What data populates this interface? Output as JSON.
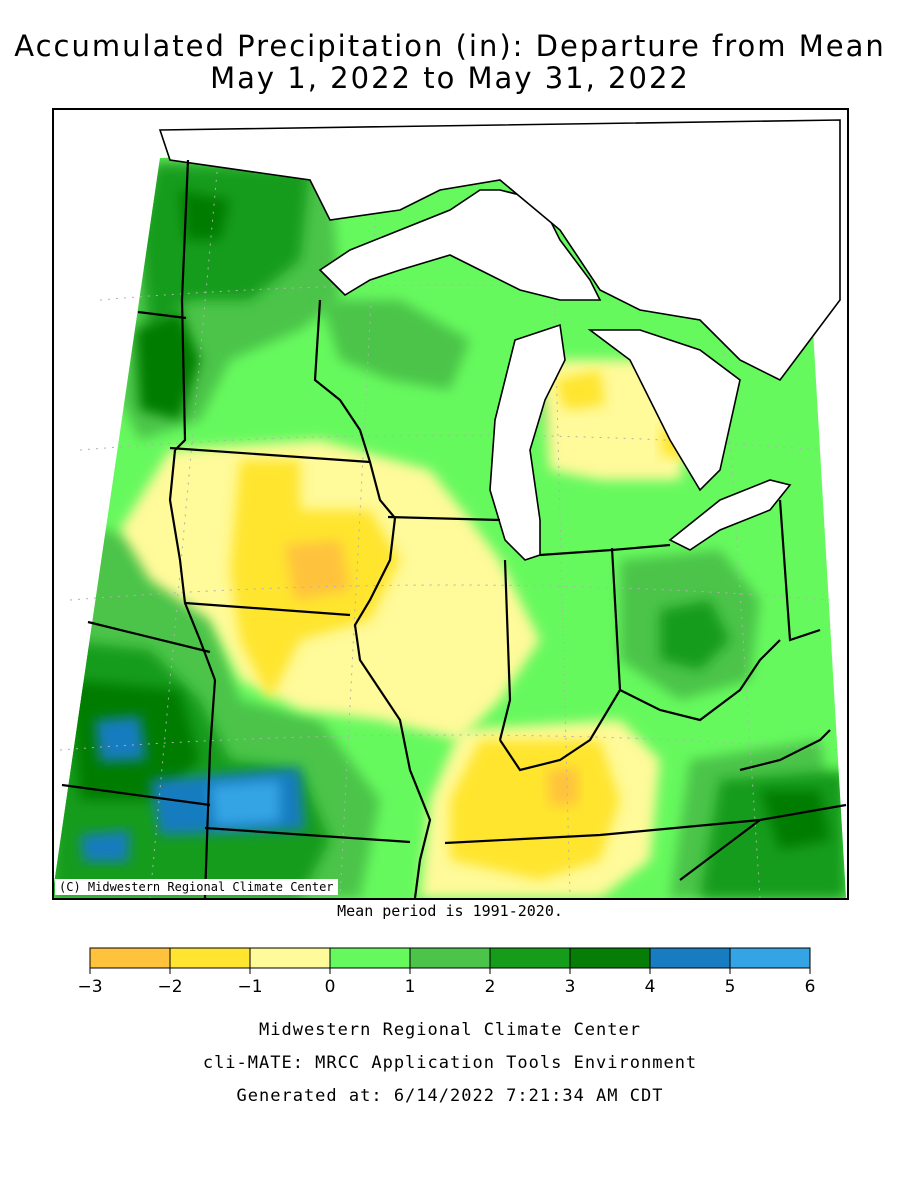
{
  "title": {
    "line1": "Accumulated Precipitation (in): Departure from Mean",
    "line2": "May 1, 2022 to May 31, 2022"
  },
  "map": {
    "credit": "(C) Midwestern Regional Climate Center",
    "colors": {
      "water": "#ffffff",
      "border": "#000000",
      "grid": "#b0b0b0"
    }
  },
  "mean_note": "Mean period is 1991-2020.",
  "legend": {
    "bins": [
      {
        "from": -3,
        "to": -2,
        "color": "#ffc23d"
      },
      {
        "from": -2,
        "to": -1,
        "color": "#ffe52f"
      },
      {
        "from": -1,
        "to": 0,
        "color": "#fffa9a"
      },
      {
        "from": 0,
        "to": 1,
        "color": "#66f95e"
      },
      {
        "from": 1,
        "to": 2,
        "color": "#4cc44a"
      },
      {
        "from": 2,
        "to": 3,
        "color": "#169c1b"
      },
      {
        "from": 3,
        "to": 4,
        "color": "#057d06"
      },
      {
        "from": 4,
        "to": 5,
        "color": "#187cc0"
      },
      {
        "from": 5,
        "to": 6,
        "color": "#34a4e4"
      }
    ],
    "tick_labels": [
      "−3",
      "−2",
      "−1",
      "0",
      "1",
      "2",
      "3",
      "4",
      "5",
      "6"
    ]
  },
  "footer": {
    "line1": "Midwestern Regional Climate Center",
    "line2": "cli-MATE: MRCC Application Tools Environment",
    "line3": "Generated at: 6/14/2022 7:21:34 AM CDT"
  }
}
